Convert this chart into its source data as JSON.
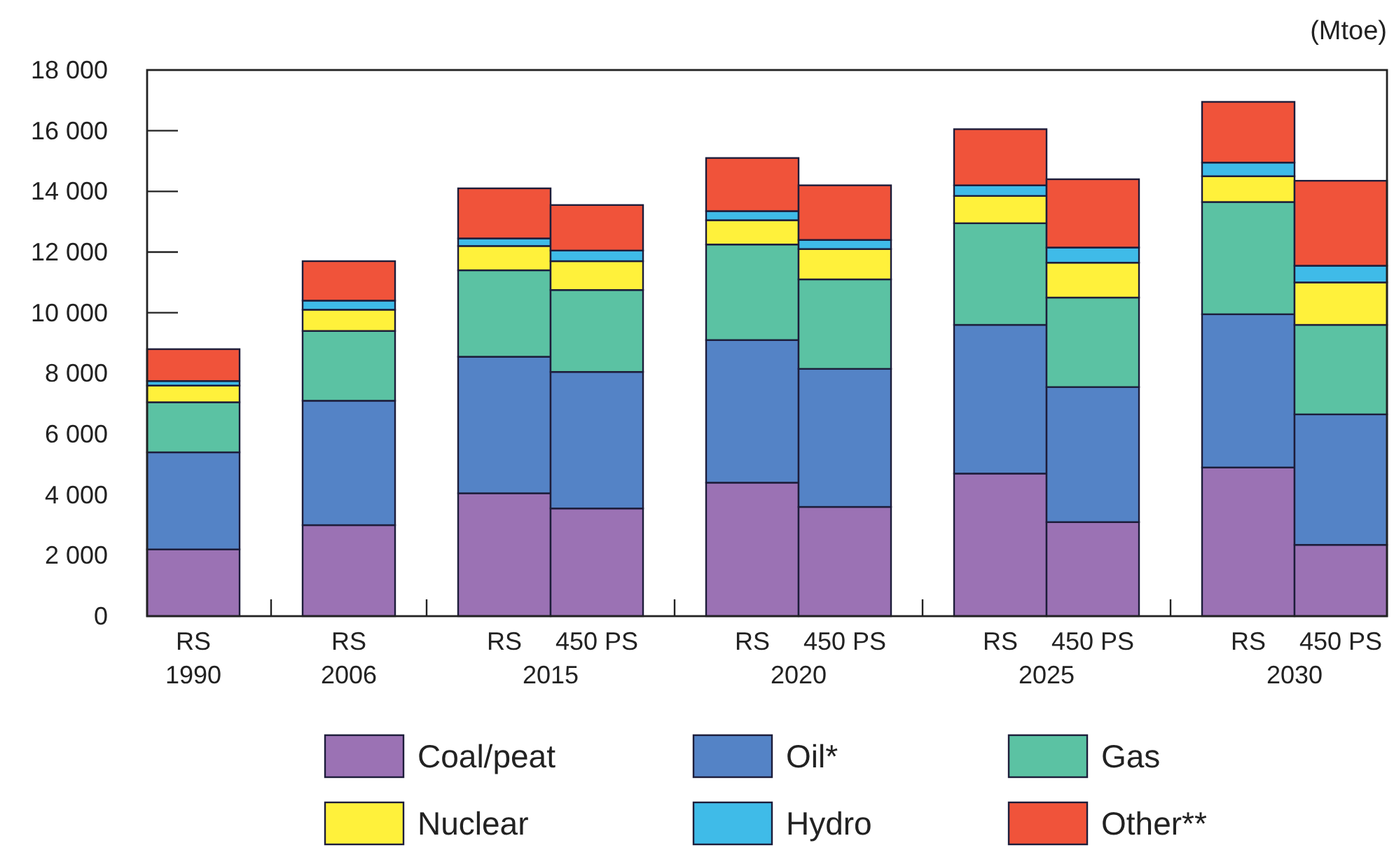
{
  "chart_data": {
    "type": "bar",
    "stacked": true,
    "ylabel": "(Mtoe)",
    "legend": "bottom",
    "categories": [
      "RS",
      "RS",
      "RS",
      "450 PS",
      "RS",
      "450 PS",
      "RS",
      "450 PS",
      "RS",
      "450 PS"
    ],
    "annotations": [
      "1990",
      "2006",
      "2015",
      "2020",
      "2025",
      "2030"
    ],
    "ylim": [
      0,
      18000
    ],
    "yticks": [
      0,
      {
        "value": 2000,
        "label": "2 000"
      },
      {
        "value": 4000,
        "label": "4 000"
      },
      {
        "value": 6000,
        "label": "6 000"
      },
      {
        "value": 8000,
        "label": "8 000"
      },
      {
        "value": 10000,
        "label": "10 000"
      },
      {
        "value": 12000,
        "label": "12 000"
      },
      {
        "value": 14000,
        "label": "14 000"
      },
      {
        "value": 16000,
        "label": "16 000"
      },
      {
        "value": 18000,
        "label": "18 000"
      }
    ],
    "series": [
      {
        "name": "Coal/peat",
        "color": "#9b72b4",
        "values": [
          2200,
          3000,
          4050,
          3550,
          4400,
          3600,
          4700,
          3100,
          4900,
          2350
        ]
      },
      {
        "name": "Oil*",
        "color": "#5483c6",
        "values": [
          3200,
          4100,
          4500,
          4500,
          4700,
          4550,
          4900,
          4450,
          5050,
          4300
        ]
      },
      {
        "name": "Gas",
        "color": "#5bc2a3",
        "values": [
          1650,
          2300,
          2850,
          2700,
          3150,
          2950,
          3350,
          2950,
          3700,
          2950
        ]
      },
      {
        "name": "Nuclear",
        "color": "#fff13b",
        "values": [
          550,
          700,
          800,
          950,
          800,
          1000,
          900,
          1150,
          850,
          1400
        ]
      },
      {
        "name": "Hydro",
        "color": "#3fbbe8",
        "values": [
          150,
          300,
          250,
          350,
          300,
          300,
          350,
          500,
          450,
          550
        ]
      },
      {
        "name": "Other**",
        "color": "#f0533a",
        "values": [
          1050,
          1300,
          1650,
          1500,
          1750,
          1800,
          1850,
          2250,
          2000,
          2800
        ]
      }
    ]
  }
}
